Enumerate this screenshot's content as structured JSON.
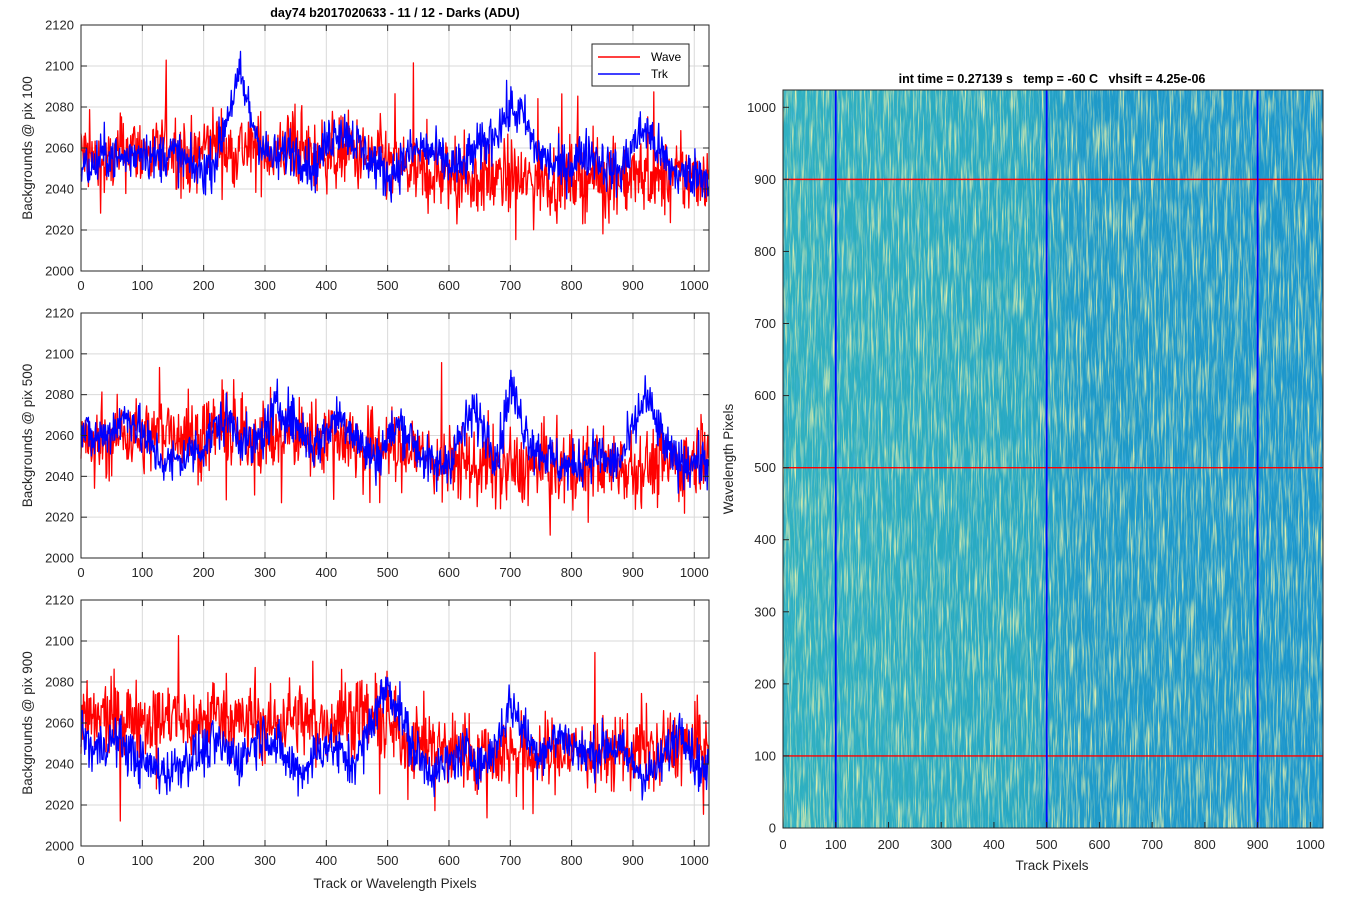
{
  "figure": {
    "left_title": "day74 b2017020633 - 11 / 12 - Darks (ADU)",
    "right_title": "int time = 0.27139 s   temp = -60 C   vhsift = 4.25e-06"
  },
  "colors": {
    "wave": "#ff0000",
    "trk": "#0000ff",
    "grid": "#d9d9d9",
    "axis": "#262626",
    "image_base": "#1fa0c4",
    "image_bright": "#b8d86a",
    "image_dark": "#1a7fc8"
  },
  "chart_data": [
    {
      "type": "line",
      "ylabel": "Backgrounds @ pix 100",
      "xlabel": "",
      "xlim": [
        0,
        1024
      ],
      "ylim": [
        2000,
        2120
      ],
      "xticks": [
        0,
        100,
        200,
        300,
        400,
        500,
        600,
        700,
        800,
        900,
        1000
      ],
      "yticks": [
        2000,
        2020,
        2040,
        2060,
        2080,
        2100,
        2120
      ],
      "grid": true,
      "legend": "top-right",
      "series": [
        {
          "name": "Wave",
          "color": "#ff0000",
          "x": [
            0,
            20,
            40,
            60,
            80,
            100,
            120,
            140,
            160,
            180,
            200,
            220,
            240,
            260,
            280,
            300,
            320,
            340,
            360,
            380,
            400,
            420,
            440,
            460,
            480,
            500,
            520,
            540,
            560,
            580,
            600,
            620,
            640,
            660,
            680,
            700,
            720,
            740,
            760,
            780,
            800,
            820,
            840,
            860,
            880,
            900,
            920,
            940,
            960,
            980,
            1000,
            1024
          ],
          "values": [
            2058,
            2054,
            2050,
            2056,
            2060,
            2058,
            2055,
            2062,
            2059,
            2054,
            2060,
            2064,
            2057,
            2061,
            2058,
            2060,
            2056,
            2062,
            2058,
            2055,
            2058,
            2056,
            2060,
            2054,
            2057,
            2052,
            2050,
            2049,
            2046,
            2048,
            2045,
            2047,
            2044,
            2046,
            2044,
            2047,
            2043,
            2045,
            2046,
            2044,
            2047,
            2045,
            2046,
            2044,
            2046,
            2045,
            2047,
            2044,
            2046,
            2045,
            2047,
            2046
          ]
        },
        {
          "name": "Trk",
          "color": "#0000ff",
          "x": [
            0,
            20,
            40,
            60,
            80,
            100,
            120,
            140,
            160,
            180,
            200,
            220,
            240,
            260,
            280,
            300,
            320,
            340,
            360,
            380,
            400,
            420,
            440,
            460,
            480,
            500,
            520,
            540,
            560,
            580,
            600,
            620,
            640,
            660,
            680,
            700,
            720,
            740,
            760,
            780,
            800,
            820,
            840,
            860,
            880,
            900,
            920,
            940,
            960,
            980,
            1000,
            1024
          ],
          "values": [
            2052,
            2050,
            2058,
            2054,
            2056,
            2060,
            2054,
            2058,
            2056,
            2050,
            2049,
            2055,
            2078,
            2095,
            2072,
            2058,
            2054,
            2060,
            2056,
            2050,
            2062,
            2070,
            2066,
            2058,
            2052,
            2046,
            2052,
            2058,
            2060,
            2056,
            2052,
            2050,
            2058,
            2062,
            2070,
            2079,
            2076,
            2060,
            2054,
            2050,
            2052,
            2058,
            2056,
            2050,
            2048,
            2062,
            2070,
            2060,
            2050,
            2046,
            2048,
            2047
          ]
        }
      ]
    },
    {
      "type": "line",
      "ylabel": "Backgrounds @ pix 500",
      "xlabel": "",
      "xlim": [
        0,
        1024
      ],
      "ylim": [
        2000,
        2120
      ],
      "xticks": [
        0,
        100,
        200,
        300,
        400,
        500,
        600,
        700,
        800,
        900,
        1000
      ],
      "yticks": [
        2000,
        2020,
        2040,
        2060,
        2080,
        2100,
        2120
      ],
      "grid": true,
      "series": [
        {
          "name": "Wave",
          "color": "#ff0000",
          "x": [
            0,
            20,
            40,
            60,
            80,
            100,
            120,
            140,
            160,
            180,
            200,
            220,
            240,
            260,
            280,
            300,
            320,
            340,
            360,
            380,
            400,
            420,
            440,
            460,
            480,
            500,
            520,
            540,
            560,
            580,
            600,
            620,
            640,
            660,
            680,
            700,
            720,
            740,
            760,
            780,
            800,
            820,
            840,
            860,
            880,
            900,
            920,
            940,
            960,
            980,
            1000,
            1024
          ],
          "values": [
            2058,
            2054,
            2056,
            2060,
            2062,
            2058,
            2060,
            2064,
            2062,
            2058,
            2060,
            2064,
            2062,
            2058,
            2061,
            2060,
            2056,
            2062,
            2060,
            2058,
            2062,
            2060,
            2058,
            2054,
            2056,
            2055,
            2052,
            2054,
            2050,
            2048,
            2046,
            2048,
            2044,
            2046,
            2042,
            2045,
            2043,
            2046,
            2045,
            2043,
            2046,
            2044,
            2047,
            2045,
            2046,
            2044,
            2046,
            2045,
            2047,
            2045,
            2048,
            2060
          ]
        },
        {
          "name": "Trk",
          "color": "#0000ff",
          "x": [
            0,
            20,
            40,
            60,
            80,
            100,
            120,
            140,
            160,
            180,
            200,
            220,
            240,
            260,
            280,
            300,
            320,
            340,
            360,
            380,
            400,
            420,
            440,
            460,
            480,
            500,
            520,
            540,
            560,
            580,
            600,
            620,
            640,
            660,
            680,
            700,
            720,
            740,
            760,
            780,
            800,
            820,
            840,
            860,
            880,
            900,
            920,
            940,
            960,
            980,
            1000,
            1024
          ],
          "values": [
            2062,
            2058,
            2060,
            2066,
            2070,
            2060,
            2052,
            2046,
            2048,
            2052,
            2055,
            2064,
            2068,
            2060,
            2054,
            2062,
            2074,
            2070,
            2062,
            2054,
            2062,
            2070,
            2064,
            2054,
            2048,
            2058,
            2066,
            2058,
            2048,
            2044,
            2048,
            2060,
            2072,
            2062,
            2050,
            2085,
            2066,
            2054,
            2050,
            2046,
            2044,
            2048,
            2052,
            2046,
            2048,
            2062,
            2080,
            2064,
            2050,
            2046,
            2048,
            2046
          ]
        }
      ]
    },
    {
      "type": "line",
      "ylabel": "Backgrounds @ pix 900",
      "xlabel": "Track or Wavelength Pixels",
      "xlim": [
        0,
        1024
      ],
      "ylim": [
        2000,
        2120
      ],
      "xticks": [
        0,
        100,
        200,
        300,
        400,
        500,
        600,
        700,
        800,
        900,
        1000
      ],
      "yticks": [
        2000,
        2020,
        2040,
        2060,
        2080,
        2100,
        2120
      ],
      "grid": true,
      "series": [
        {
          "name": "Wave",
          "color": "#ff0000",
          "x": [
            0,
            20,
            40,
            60,
            80,
            100,
            120,
            140,
            160,
            180,
            200,
            220,
            240,
            260,
            280,
            300,
            320,
            340,
            360,
            380,
            400,
            420,
            440,
            460,
            480,
            500,
            520,
            540,
            560,
            580,
            600,
            620,
            640,
            660,
            680,
            700,
            720,
            740,
            760,
            780,
            800,
            820,
            840,
            860,
            880,
            900,
            920,
            940,
            960,
            980,
            1000,
            1024
          ],
          "values": [
            2062,
            2060,
            2064,
            2060,
            2062,
            2064,
            2060,
            2062,
            2064,
            2058,
            2062,
            2066,
            2064,
            2060,
            2062,
            2058,
            2060,
            2064,
            2062,
            2058,
            2060,
            2062,
            2064,
            2066,
            2060,
            2058,
            2054,
            2052,
            2050,
            2048,
            2046,
            2048,
            2044,
            2046,
            2044,
            2048,
            2046,
            2044,
            2046,
            2045,
            2047,
            2045,
            2046,
            2044,
            2048,
            2046,
            2048,
            2044,
            2050,
            2048,
            2050,
            2048
          ]
        },
        {
          "name": "Trk",
          "color": "#0000ff",
          "x": [
            0,
            20,
            40,
            60,
            80,
            100,
            120,
            140,
            160,
            180,
            200,
            220,
            240,
            260,
            280,
            300,
            320,
            340,
            360,
            380,
            400,
            420,
            440,
            460,
            480,
            500,
            520,
            540,
            560,
            580,
            600,
            620,
            640,
            660,
            680,
            700,
            720,
            740,
            760,
            780,
            800,
            820,
            840,
            860,
            880,
            900,
            920,
            940,
            960,
            980,
            1000,
            1024
          ],
          "values": [
            2056,
            2046,
            2050,
            2052,
            2046,
            2040,
            2038,
            2036,
            2040,
            2044,
            2046,
            2050,
            2046,
            2042,
            2050,
            2056,
            2048,
            2040,
            2036,
            2044,
            2050,
            2046,
            2040,
            2048,
            2066,
            2078,
            2066,
            2048,
            2040,
            2036,
            2040,
            2046,
            2044,
            2040,
            2052,
            2070,
            2058,
            2046,
            2048,
            2054,
            2050,
            2044,
            2046,
            2050,
            2046,
            2040,
            2034,
            2038,
            2048,
            2060,
            2042,
            2034
          ]
        }
      ]
    },
    {
      "type": "heatmap",
      "title": "int time = 0.27139 s   temp = -60 C   vhsift = 4.25e-06",
      "xlabel": "Track Pixels",
      "ylabel": "Wavelength Pixels",
      "xlim": [
        0,
        1024
      ],
      "ylim": [
        0,
        1024
      ],
      "xticks": [
        0,
        100,
        200,
        300,
        400,
        500,
        600,
        700,
        800,
        900,
        1000
      ],
      "yticks": [
        0,
        100,
        200,
        300,
        400,
        500,
        600,
        700,
        800,
        900,
        1000
      ],
      "vertical_lines": {
        "x": [
          100,
          500,
          900
        ],
        "color": "#0000ff"
      },
      "horizontal_lines": {
        "y": [
          100,
          500,
          900
        ],
        "color": "#ff0000"
      },
      "grid": false
    }
  ]
}
